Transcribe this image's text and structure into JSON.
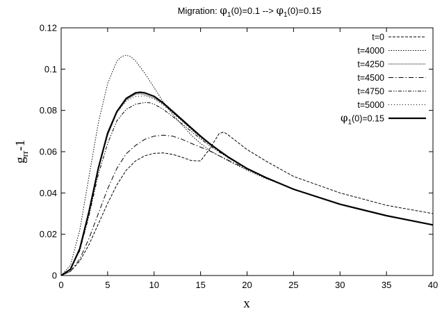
{
  "chart_data": {
    "type": "line",
    "title": {
      "prefix": "Migration: ",
      "sym1": "φ",
      "sub1": "1",
      "mid": "(0)=0.1 --> ",
      "sym2": "φ",
      "sub2": "1",
      "suffix": "(0)=0.15"
    },
    "xlabel": "x",
    "ylabel": {
      "main": "g",
      "sub": "rr",
      "suffix": "-1"
    },
    "xlim": [
      0,
      40
    ],
    "ylim": [
      0,
      0.12
    ],
    "xticks": [
      0,
      5,
      10,
      15,
      20,
      25,
      30,
      35,
      40
    ],
    "yticks": [
      0,
      0.02,
      0.04,
      0.06,
      0.08,
      0.1,
      0.12
    ],
    "xtick_labels": [
      "0",
      "5",
      "10",
      "15",
      "20",
      "25",
      "30",
      "35",
      "40"
    ],
    "ytick_labels": [
      "0",
      "0.02",
      "0.04",
      "0.06",
      "0.08",
      "0.1",
      "0.12"
    ],
    "grid": false,
    "legend_position": "top-right",
    "series": [
      {
        "name": "t=0",
        "x": [
          0,
          1,
          2,
          3,
          4,
          5,
          6,
          7,
          8,
          9,
          10,
          11,
          12,
          13,
          14,
          15,
          16,
          17,
          17.5,
          18,
          19,
          20,
          22,
          25,
          30,
          35,
          40
        ],
        "values": [
          0,
          0.002,
          0.007,
          0.015,
          0.025,
          0.035,
          0.044,
          0.051,
          0.0555,
          0.058,
          0.0592,
          0.0594,
          0.0587,
          0.0573,
          0.0557,
          0.0555,
          0.0615,
          0.0688,
          0.0695,
          0.068,
          0.0645,
          0.061,
          0.0555,
          0.048,
          0.04,
          0.034,
          0.03
        ]
      },
      {
        "name": "t=4000",
        "x": [
          0,
          1,
          2,
          3,
          4,
          5,
          6,
          6.5,
          7,
          7.5,
          8,
          9,
          10,
          11,
          12,
          13,
          14,
          15,
          16,
          17,
          18,
          20,
          22,
          25,
          30,
          35,
          40
        ],
        "values": [
          0,
          0.005,
          0.022,
          0.048,
          0.074,
          0.093,
          0.104,
          0.106,
          0.1068,
          0.106,
          0.104,
          0.098,
          0.091,
          0.084,
          0.078,
          0.073,
          0.068,
          0.064,
          0.0605,
          0.058,
          0.0555,
          0.051,
          0.047,
          0.042,
          0.0345,
          0.029,
          0.0245
        ]
      },
      {
        "name": "t=4250",
        "x": [
          0,
          1,
          2,
          3,
          4,
          5,
          6,
          7,
          8,
          8.5,
          9,
          10,
          11,
          12,
          13,
          14,
          15,
          16,
          17,
          18,
          20,
          22,
          25,
          30,
          35,
          40
        ],
        "values": [
          0,
          0.003,
          0.013,
          0.031,
          0.052,
          0.068,
          0.079,
          0.085,
          0.0878,
          0.088,
          0.0876,
          0.086,
          0.083,
          0.079,
          0.075,
          0.071,
          0.067,
          0.0635,
          0.0603,
          0.057,
          0.0518,
          0.0475,
          0.0418,
          0.0345,
          0.029,
          0.0245
        ]
      },
      {
        "name": "t=4500",
        "x": [
          0,
          1,
          2,
          3,
          4,
          5,
          6,
          7,
          8,
          9,
          10,
          11,
          12,
          13,
          14,
          15,
          16,
          17,
          18,
          20,
          22,
          25,
          30,
          35,
          40
        ],
        "values": [
          0,
          0.002,
          0.008,
          0.018,
          0.03,
          0.042,
          0.052,
          0.059,
          0.063,
          0.066,
          0.0675,
          0.068,
          0.0675,
          0.066,
          0.064,
          0.0622,
          0.0603,
          0.058,
          0.0558,
          0.0515,
          0.0475,
          0.0418,
          0.0345,
          0.029,
          0.0245
        ]
      },
      {
        "name": "t=4750",
        "x": [
          0,
          1,
          2,
          3,
          4,
          5,
          6,
          7,
          8,
          9,
          9.5,
          10,
          11,
          12,
          13,
          14,
          15,
          16,
          17,
          18,
          20,
          22,
          25,
          30,
          35,
          40
        ],
        "values": [
          0,
          0.003,
          0.012,
          0.029,
          0.049,
          0.064,
          0.075,
          0.0805,
          0.083,
          0.0838,
          0.0837,
          0.083,
          0.0805,
          0.077,
          0.0735,
          0.0698,
          0.0662,
          0.0628,
          0.0598,
          0.057,
          0.0518,
          0.0475,
          0.0418,
          0.0345,
          0.029,
          0.0245
        ]
      },
      {
        "name": "t=5000",
        "x": [
          0,
          1,
          2,
          3,
          4,
          5,
          6,
          7,
          8,
          9,
          10,
          11,
          12,
          13,
          14,
          15,
          16,
          17,
          18,
          20,
          22,
          25,
          30,
          35,
          40
        ],
        "values": [
          0,
          0.003,
          0.013,
          0.031,
          0.052,
          0.068,
          0.079,
          0.0845,
          0.0868,
          0.087,
          0.0855,
          0.0825,
          0.0788,
          0.0748,
          0.0708,
          0.067,
          0.0635,
          0.0603,
          0.0572,
          0.0518,
          0.0475,
          0.0418,
          0.0345,
          0.029,
          0.0245
        ]
      },
      {
        "name_parts": {
          "sym": "φ",
          "sub": "1",
          "suffix": "(0)=0.15"
        },
        "x": [
          0,
          1,
          2,
          3,
          4,
          5,
          6,
          7,
          8,
          8.5,
          9,
          10,
          11,
          12,
          13,
          14,
          15,
          16,
          17,
          18,
          20,
          22,
          25,
          30,
          35,
          40
        ],
        "values": [
          0,
          0.003,
          0.013,
          0.031,
          0.052,
          0.069,
          0.0795,
          0.0858,
          0.0885,
          0.0888,
          0.0885,
          0.0868,
          0.0835,
          0.0795,
          0.0755,
          0.0715,
          0.0675,
          0.0638,
          0.0605,
          0.0573,
          0.0518,
          0.0475,
          0.0418,
          0.0345,
          0.029,
          0.0245
        ]
      }
    ],
    "styles": [
      {
        "dash": "4,2",
        "width": 1
      },
      {
        "dash": "1.5,2",
        "width": 1
      },
      {
        "dash": "1,1",
        "width": 1
      },
      {
        "dash": "7,3,1.5,3",
        "width": 1
      },
      {
        "dash": "5,2,1.5,2,1.5,2",
        "width": 1
      },
      {
        "dash": "1,3",
        "width": 1
      },
      {
        "dash": "none",
        "width": 2.2
      }
    ],
    "line_color": "#000000"
  }
}
